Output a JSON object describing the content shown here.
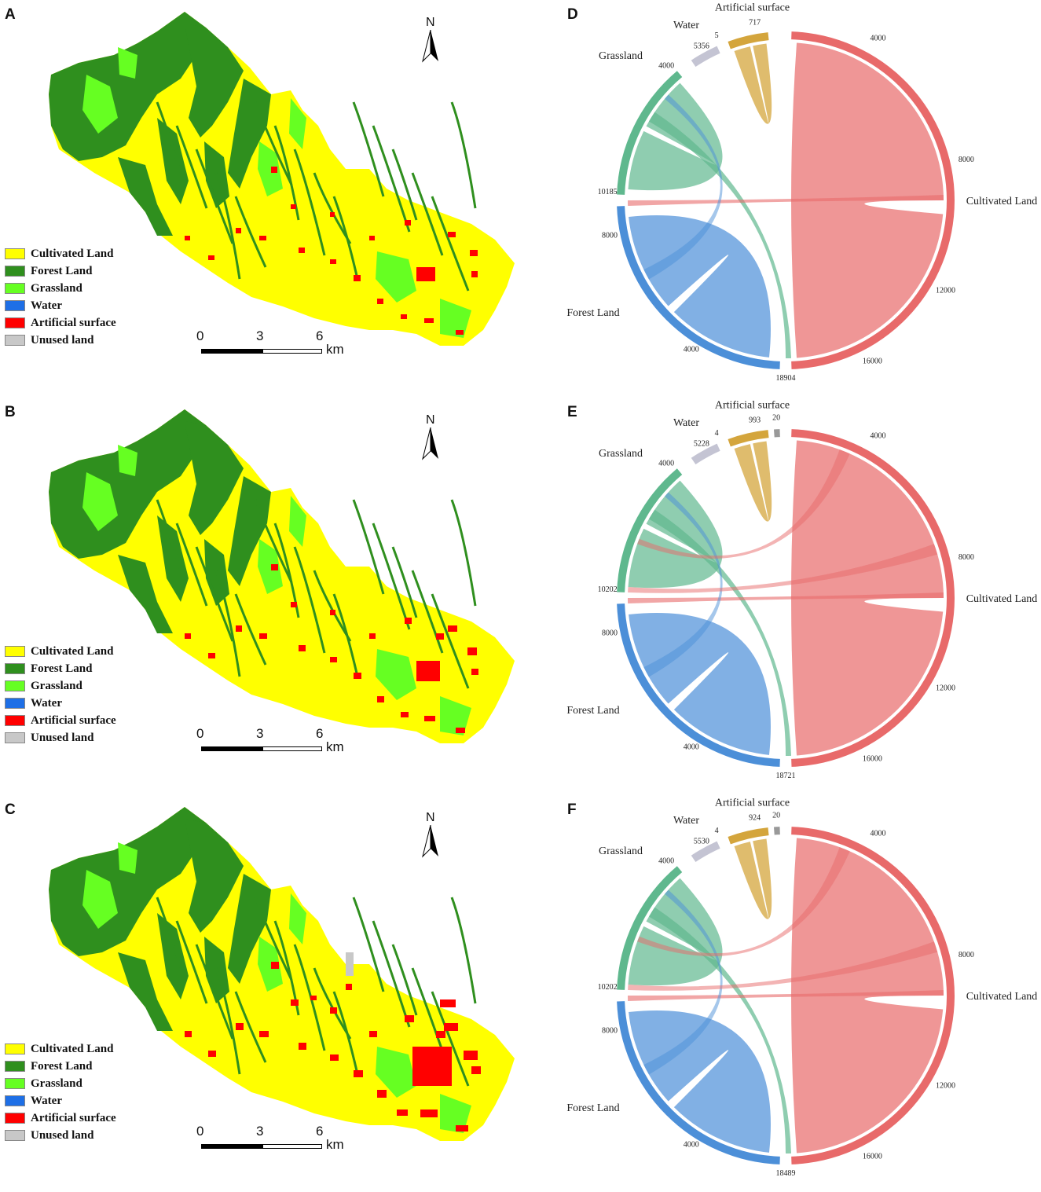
{
  "panels": [
    {
      "letter": "A"
    },
    {
      "letter": "B"
    },
    {
      "letter": "C"
    },
    {
      "letter": "D"
    },
    {
      "letter": "E"
    },
    {
      "letter": "F"
    }
  ],
  "legend": [
    {
      "label": "Cultivated Land",
      "color": "#ffff00"
    },
    {
      "label": "Forest  Land",
      "color": "#2f8f1e"
    },
    {
      "label": "Grassland",
      "color": "#66ff22"
    },
    {
      "label": "Water",
      "color": "#1e6fe6"
    },
    {
      "label": "Artificial  surface",
      "color": "#ff0000"
    },
    {
      "label": "Unused land",
      "color": "#c8c8c8"
    }
  ],
  "scalebar": {
    "ticks": [
      "0",
      "3",
      "6"
    ],
    "unit": "km"
  },
  "north_label": "N",
  "chord_colors": {
    "cultivated": "#e86a6a",
    "forest": "#4c8fd8",
    "grass": "#5fb88e",
    "water": "#8a8aa8",
    "artificial": "#d4a53c",
    "unused": "#999999"
  },
  "chord_data": [
    {
      "labels": {
        "cultivated": "Cultivated Land",
        "forest": "Forest Land",
        "grass": "Grassland",
        "water": "Water",
        "artificial": "Artificial surface"
      },
      "numbers": {
        "grass_start": "4000",
        "grass_total": "10185",
        "forest_mid": "8000",
        "forest_end": "4000",
        "forest_total": "18904",
        "cult_4000": "4000",
        "cult_8000": "8000",
        "cult_12000": "12000",
        "cult_16000": "16000",
        "water_total": "5356",
        "water_top": "5",
        "artificial_total": "717"
      }
    },
    {
      "labels": {
        "cultivated": "Cultivated Land",
        "forest": "Forest Land",
        "grass": "Grassland",
        "water": "Water",
        "artificial": "Artificial surface",
        "unused": "Unused land"
      },
      "numbers": {
        "grass_start": "4000",
        "grass_total": "10202",
        "forest_mid": "8000",
        "forest_end": "4000",
        "forest_total": "18721",
        "cult_4000": "4000",
        "cult_8000": "8000",
        "cult_12000": "12000",
        "cult_16000": "16000",
        "water_total": "5228",
        "water_top": "4",
        "artificial_total": "993",
        "unused_total": "20"
      }
    },
    {
      "labels": {
        "cultivated": "Cultivated Land",
        "forest": "Forest Land",
        "grass": "Grassland",
        "water": "Water",
        "artificial": "Artificial surface",
        "unused": "Unused land"
      },
      "numbers": {
        "grass_start": "4000",
        "grass_total": "10202",
        "forest_mid": "8000",
        "forest_end": "4000",
        "forest_total": "18489",
        "cult_4000": "4000",
        "cult_8000": "8000",
        "cult_12000": "12000",
        "cult_16000": "16000",
        "water_total": "5530",
        "water_top": "4",
        "artificial_total": "924",
        "unused_total": "20"
      }
    }
  ]
}
